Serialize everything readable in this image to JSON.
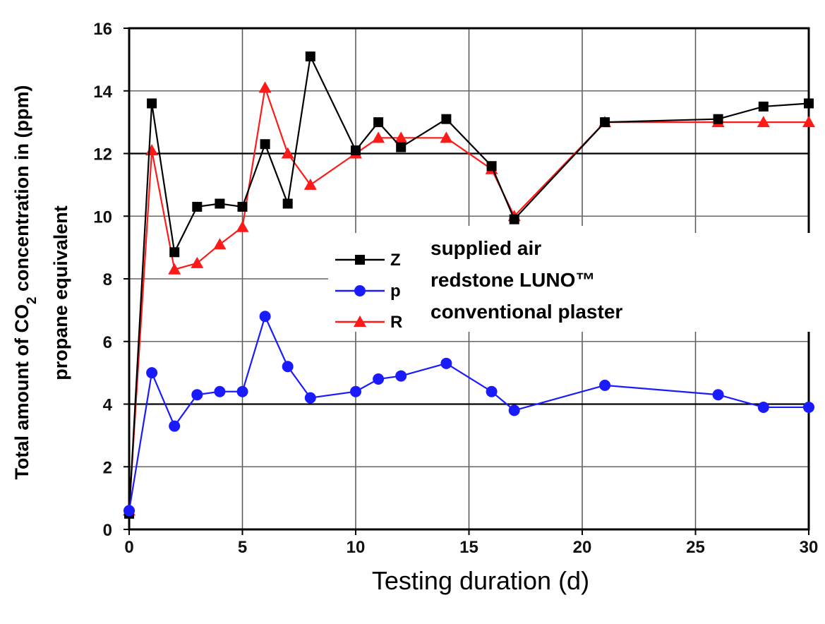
{
  "chart_data": {
    "type": "line",
    "xlabel": "Testing duration (d)",
    "ylabel_line1": "Total amount of CO",
    "ylabel_subscript": "2",
    "ylabel_line1_rest": " concentration in (ppm)",
    "ylabel_line2": "propane equivalent",
    "xlim": [
      0,
      30
    ],
    "ylim": [
      0,
      16
    ],
    "x_ticks": [
      "0",
      "5",
      "10",
      "15",
      "20",
      "25",
      "30"
    ],
    "y_ticks": [
      "0",
      "2",
      "4",
      "6",
      "8",
      "10",
      "12",
      "14",
      "16"
    ],
    "grid": true,
    "legend_position": "center-right",
    "legend_labels": [
      "supplied air",
      "redstone LUNO™",
      "conventional plaster"
    ],
    "legend_partial_letters": [
      "Z",
      "p",
      "R"
    ],
    "series": [
      {
        "name": "supplied air",
        "marker": "square",
        "color": "#000000",
        "x": [
          0,
          1,
          2,
          3,
          4,
          5,
          6,
          7,
          8,
          10,
          11,
          12,
          14,
          16,
          17,
          21,
          26,
          28,
          30
        ],
        "y": [
          0.5,
          13.6,
          8.85,
          10.3,
          10.4,
          10.3,
          12.3,
          10.4,
          15.1,
          12.1,
          13.0,
          12.2,
          13.1,
          11.6,
          9.9,
          13.0,
          13.1,
          13.5,
          13.6
        ]
      },
      {
        "name": "redstone LUNO™",
        "marker": "circle",
        "color": "#1a1aff",
        "x": [
          0,
          1,
          2,
          3,
          4,
          5,
          6,
          7,
          8,
          10,
          11,
          12,
          14,
          16,
          17,
          21,
          26,
          28,
          30
        ],
        "y": [
          0.6,
          5.0,
          3.3,
          4.3,
          4.4,
          4.4,
          6.8,
          5.2,
          4.2,
          4.4,
          4.8,
          4.9,
          5.3,
          4.4,
          3.8,
          4.6,
          4.3,
          3.9,
          3.9
        ]
      },
      {
        "name": "conventional plaster",
        "marker": "triangle",
        "color": "#ff1a1a",
        "x": [
          0,
          1,
          2,
          3,
          4,
          5,
          6,
          7,
          8,
          10,
          11,
          12,
          14,
          16,
          17,
          21,
          26,
          28,
          30
        ],
        "y": [
          0.6,
          12.1,
          8.3,
          8.5,
          9.1,
          9.65,
          14.1,
          12.0,
          11.0,
          12.0,
          12.5,
          12.5,
          12.5,
          11.5,
          10.0,
          13.0,
          13.0,
          13.0,
          13.0
        ]
      }
    ]
  }
}
